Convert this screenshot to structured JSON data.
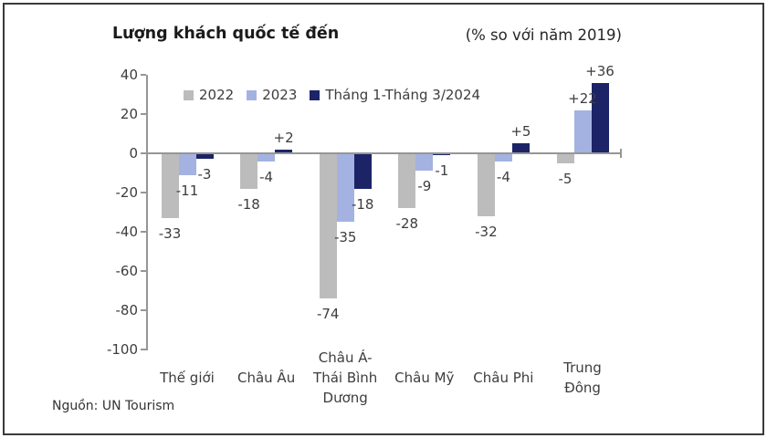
{
  "chart_data": {
    "type": "bar",
    "title": "Lượng khách quốc tế đến",
    "subtitle": "(% so với năm 2019)",
    "categories": [
      "Thế giới",
      "Châu Âu",
      "Châu Á-\nThái Bình\nDương",
      "Châu Mỹ",
      "Châu Phi",
      "Trung\nĐông"
    ],
    "series": [
      {
        "name": "2022",
        "color": "#bcbcbc",
        "values": [
          -33,
          -18,
          -74,
          -28,
          -32,
          -5
        ],
        "labels": [
          "-33",
          "-18",
          "-74",
          "-28",
          "-32",
          "-5"
        ]
      },
      {
        "name": "2023",
        "color": "#a3b2e0",
        "values": [
          -11,
          -4,
          -35,
          -9,
          -4,
          22
        ],
        "labels": [
          "-11",
          "-4",
          "-35",
          "-9",
          "-4",
          "+22"
        ]
      },
      {
        "name": "Tháng 1-Tháng 3/2024",
        "color": "#1c2467",
        "values": [
          -3,
          2,
          -18,
          -1,
          5,
          36
        ],
        "labels": [
          "-3",
          "+2",
          "-18",
          "-1",
          "+5",
          "+36"
        ]
      }
    ],
    "y_axis": {
      "min": -100,
      "max": 40,
      "tick_step": 20,
      "ticks": [
        40,
        20,
        0,
        -20,
        -40,
        -60,
        -80,
        -100
      ]
    },
    "legend_position": "top-inside",
    "grid": false
  },
  "source_note": "Nguồn: UN Tourism"
}
